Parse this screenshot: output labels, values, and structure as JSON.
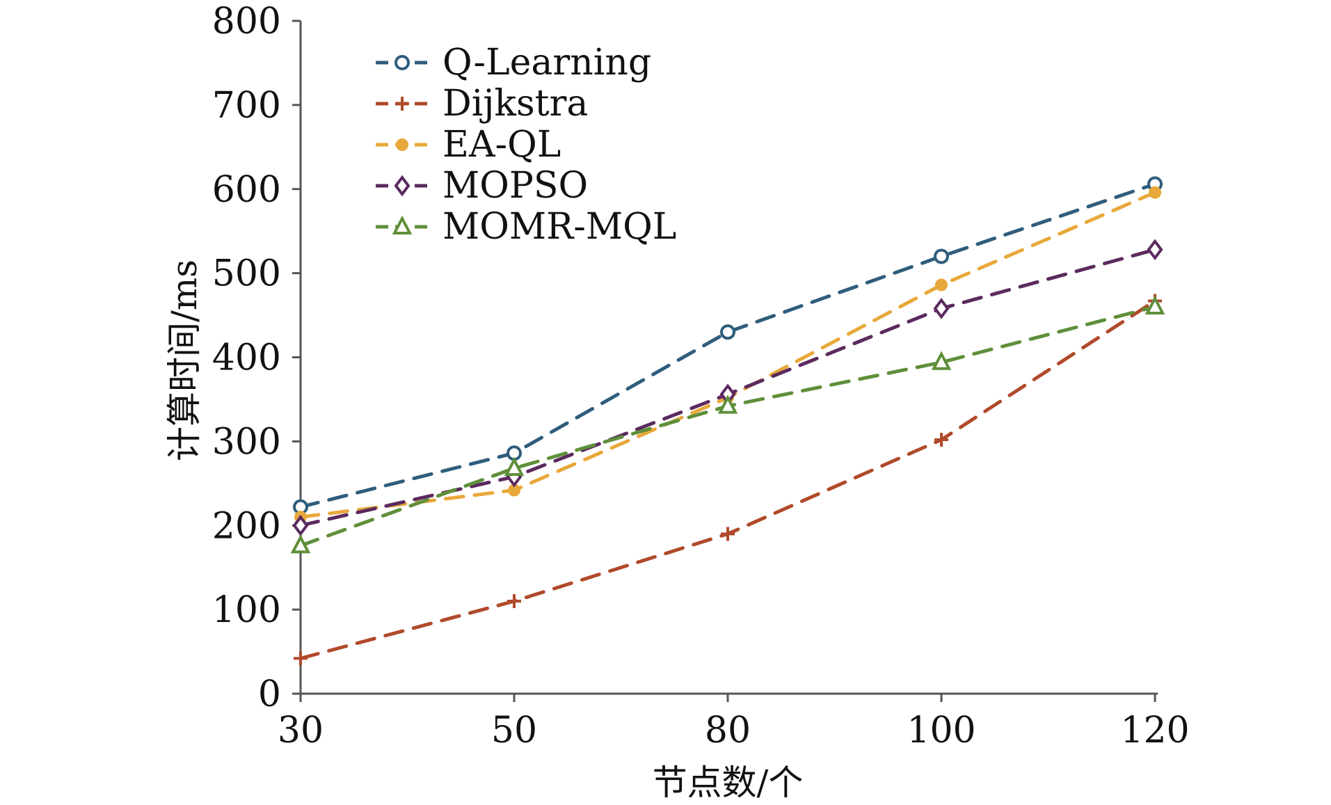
{
  "chart_data": {
    "type": "line",
    "xlabel": "节点数/个",
    "ylabel": "计算时间/ms",
    "categories": [
      "30",
      "50",
      "80",
      "100",
      "120"
    ],
    "ylim": [
      0,
      800
    ],
    "yticks": [
      0,
      100,
      200,
      300,
      400,
      500,
      600,
      700,
      800
    ],
    "grid": false,
    "legend_position": "top-left",
    "series": [
      {
        "name": "Q-Learning",
        "color": "#2f5d7c",
        "marker": "circle",
        "values": [
          222,
          286,
          430,
          520,
          606
        ]
      },
      {
        "name": "Dijkstra",
        "color": "#b04a2a",
        "marker": "plus",
        "values": [
          42,
          110,
          190,
          302,
          467
        ]
      },
      {
        "name": "EA-QL",
        "color": "#e8a83a",
        "marker": "filled-circle",
        "values": [
          210,
          242,
          352,
          486,
          596
        ]
      },
      {
        "name": "MOPSO",
        "color": "#5b2a5e",
        "marker": "diamond",
        "values": [
          200,
          258,
          356,
          458,
          528
        ]
      },
      {
        "name": "MOMR-MQL",
        "color": "#5f8f3a",
        "marker": "triangle",
        "values": [
          176,
          268,
          342,
          394,
          460
        ]
      }
    ]
  }
}
